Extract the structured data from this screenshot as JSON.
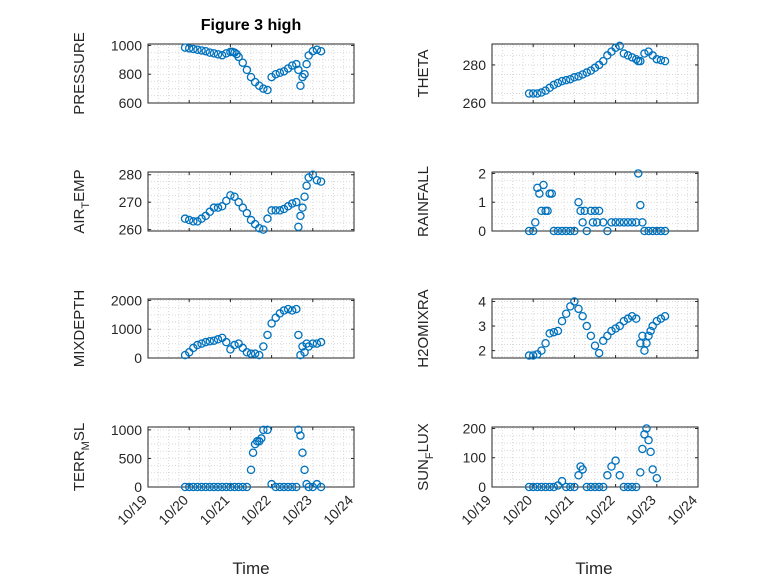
{
  "figure": {
    "title": "Figure 3 high",
    "x_axis_label": "Time",
    "x_tick_labels": [
      "10/19",
      "10/20",
      "10/21",
      "10/22",
      "10/23",
      "10/24"
    ],
    "marker_color": "#0072bd"
  },
  "chart_data": [
    {
      "type": "scatter",
      "ylabel": "PRESSURE",
      "yticks": [
        600,
        800,
        1000
      ],
      "ylim": [
        600,
        1010
      ],
      "xlim": [
        0,
        5
      ],
      "x": [
        0.9,
        1.0,
        1.1,
        1.2,
        1.3,
        1.4,
        1.5,
        1.6,
        1.7,
        1.8,
        1.9,
        2.0,
        2.05,
        2.1,
        2.15,
        2.2,
        2.3,
        2.4,
        2.5,
        2.6,
        2.7,
        2.8,
        2.9,
        3.0,
        3.1,
        3.2,
        3.3,
        3.4,
        3.5,
        3.6,
        3.65,
        3.7,
        3.75,
        3.8,
        3.85,
        3.9,
        4.0,
        4.1,
        4.2
      ],
      "y": [
        985,
        980,
        975,
        970,
        965,
        960,
        950,
        945,
        938,
        932,
        945,
        955,
        955,
        950,
        940,
        920,
        880,
        830,
        780,
        745,
        720,
        700,
        690,
        780,
        800,
        810,
        820,
        840,
        860,
        870,
        830,
        720,
        780,
        800,
        870,
        930,
        960,
        970,
        960
      ]
    },
    {
      "type": "scatter",
      "ylabel": "THETA",
      "yticks": [
        260,
        280
      ],
      "ylim": [
        260,
        291
      ],
      "xlim": [
        0,
        5
      ],
      "x": [
        0.9,
        1.0,
        1.1,
        1.2,
        1.3,
        1.4,
        1.5,
        1.6,
        1.7,
        1.8,
        1.9,
        2.0,
        2.1,
        2.2,
        2.3,
        2.4,
        2.5,
        2.6,
        2.7,
        2.8,
        2.9,
        3.0,
        3.1,
        3.2,
        3.3,
        3.4,
        3.5,
        3.55,
        3.6,
        3.7,
        3.8,
        3.9,
        4.0,
        4.1,
        4.2
      ],
      "y": [
        265,
        265,
        265,
        265.5,
        266.5,
        268,
        269.5,
        270.5,
        271.5,
        272,
        272.5,
        273.5,
        274,
        275,
        276,
        277,
        278.5,
        280,
        282,
        285,
        287,
        289,
        290,
        286,
        285,
        284,
        283,
        282,
        282,
        286,
        287,
        285,
        283,
        282.5,
        282
      ]
    },
    {
      "type": "scatter",
      "ylabel": "AIR_TEMP",
      "yticks": [
        260,
        270,
        280
      ],
      "ylim": [
        259.5,
        281
      ],
      "xlim": [
        0,
        5
      ],
      "x": [
        0.9,
        1.0,
        1.1,
        1.2,
        1.3,
        1.4,
        1.5,
        1.6,
        1.7,
        1.8,
        1.9,
        2.0,
        2.1,
        2.2,
        2.3,
        2.4,
        2.5,
        2.6,
        2.7,
        2.8,
        2.9,
        3.0,
        3.1,
        3.2,
        3.3,
        3.4,
        3.5,
        3.6,
        3.65,
        3.7,
        3.75,
        3.8,
        3.85,
        3.9,
        4.0,
        4.1,
        4.2
      ],
      "y": [
        264,
        263.5,
        263,
        263,
        264,
        265,
        266.5,
        268,
        268,
        268.5,
        270.5,
        272.5,
        272,
        270,
        268,
        266,
        263.5,
        262,
        260.5,
        260,
        264,
        267,
        267,
        267,
        267.5,
        268.5,
        269.5,
        270,
        261,
        265,
        268,
        272,
        276,
        279,
        280,
        278,
        277.5
      ]
    },
    {
      "type": "scatter",
      "ylabel": "RAINFALL",
      "yticks": [
        0,
        1,
        2
      ],
      "ylim": [
        0,
        2.05
      ],
      "xlim": [
        0,
        5
      ],
      "x": [
        0.9,
        1.0,
        1.05,
        1.1,
        1.15,
        1.2,
        1.25,
        1.3,
        1.35,
        1.4,
        1.45,
        1.5,
        1.6,
        1.7,
        1.8,
        1.9,
        2.0,
        2.1,
        2.15,
        2.2,
        2.25,
        2.3,
        2.4,
        2.45,
        2.5,
        2.55,
        2.6,
        2.7,
        2.8,
        2.9,
        3.0,
        3.1,
        3.2,
        3.3,
        3.4,
        3.5,
        3.55,
        3.6,
        3.65,
        3.7,
        3.8,
        3.9,
        4.0,
        4.1,
        4.2
      ],
      "y": [
        0,
        0,
        0.3,
        1.5,
        1.3,
        0.7,
        1.6,
        0.7,
        0.7,
        1.3,
        1.3,
        0,
        0,
        0,
        0,
        0,
        0,
        1.0,
        0.7,
        0.3,
        0.7,
        0,
        0.7,
        0.3,
        0.7,
        0.3,
        0.7,
        0.3,
        0,
        0.3,
        0.3,
        0.3,
        0.3,
        0.3,
        0.3,
        0.3,
        2.0,
        0.9,
        0.3,
        0,
        0,
        0,
        0,
        0,
        0
      ]
    },
    {
      "type": "scatter",
      "ylabel": "MIXDEPTH",
      "yticks": [
        0,
        1000,
        2000
      ],
      "ylim": [
        0,
        2050
      ],
      "xlim": [
        0,
        5
      ],
      "x": [
        0.9,
        1.0,
        1.1,
        1.2,
        1.3,
        1.4,
        1.5,
        1.6,
        1.7,
        1.8,
        1.9,
        2.0,
        2.1,
        2.2,
        2.3,
        2.4,
        2.5,
        2.6,
        2.7,
        2.8,
        2.9,
        3.0,
        3.1,
        3.2,
        3.3,
        3.4,
        3.5,
        3.6,
        3.65,
        3.7,
        3.75,
        3.8,
        3.85,
        3.9,
        4.0,
        4.1,
        4.2
      ],
      "y": [
        100,
        200,
        350,
        450,
        500,
        550,
        580,
        600,
        650,
        700,
        550,
        300,
        450,
        500,
        350,
        200,
        150,
        150,
        100,
        400,
        800,
        1200,
        1400,
        1550,
        1650,
        1700,
        1650,
        1700,
        800,
        100,
        400,
        200,
        500,
        400,
        500,
        500,
        550
      ]
    },
    {
      "type": "scatter",
      "ylabel": "H2OMIXRA",
      "yticks": [
        2,
        3,
        4
      ],
      "ylim": [
        1.7,
        4.1
      ],
      "xlim": [
        0,
        5
      ],
      "x": [
        0.9,
        1.0,
        1.1,
        1.2,
        1.3,
        1.4,
        1.5,
        1.6,
        1.7,
        1.8,
        1.9,
        2.0,
        2.1,
        2.2,
        2.3,
        2.4,
        2.5,
        2.6,
        2.7,
        2.8,
        2.9,
        3.0,
        3.1,
        3.2,
        3.3,
        3.4,
        3.5,
        3.6,
        3.65,
        3.7,
        3.75,
        3.8,
        3.85,
        3.9,
        4.0,
        4.1,
        4.2
      ],
      "y": [
        1.8,
        1.8,
        1.85,
        2.0,
        2.3,
        2.7,
        2.75,
        2.8,
        3.2,
        3.5,
        3.8,
        4.0,
        3.7,
        3.4,
        3.0,
        2.6,
        2.2,
        1.9,
        2.4,
        2.6,
        2.8,
        2.9,
        3.0,
        3.2,
        3.3,
        3.4,
        3.3,
        2.3,
        2.6,
        2.0,
        2.3,
        2.6,
        2.8,
        3.0,
        3.2,
        3.3,
        3.4
      ]
    },
    {
      "type": "scatter",
      "ylabel": "TERR_MSL",
      "yticks": [
        0,
        500,
        1000
      ],
      "ylim": [
        0,
        1050
      ],
      "xlim": [
        0,
        5
      ],
      "x": [
        0.9,
        1.0,
        1.1,
        1.2,
        1.3,
        1.4,
        1.5,
        1.6,
        1.7,
        1.8,
        1.9,
        2.0,
        2.1,
        2.2,
        2.3,
        2.4,
        2.5,
        2.55,
        2.6,
        2.65,
        2.7,
        2.75,
        2.8,
        2.9,
        3.0,
        3.1,
        3.2,
        3.3,
        3.4,
        3.5,
        3.6,
        3.65,
        3.7,
        3.75,
        3.8,
        3.85,
        3.9,
        4.0,
        4.1,
        4.2
      ],
      "y": [
        0,
        0,
        0,
        0,
        0,
        0,
        0,
        0,
        0,
        0,
        0,
        0,
        0,
        0,
        0,
        0,
        300,
        600,
        750,
        800,
        800,
        850,
        1000,
        1000,
        50,
        0,
        0,
        0,
        0,
        0,
        0,
        1000,
        900,
        600,
        300,
        50,
        0,
        0,
        50,
        0
      ]
    },
    {
      "type": "scatter",
      "ylabel": "SUN_FLUX",
      "yticks": [
        0,
        100,
        200
      ],
      "ylim": [
        0,
        205
      ],
      "xlim": [
        0,
        5
      ],
      "x": [
        0.9,
        1.0,
        1.1,
        1.2,
        1.3,
        1.4,
        1.5,
        1.6,
        1.7,
        1.8,
        1.9,
        2.0,
        2.1,
        2.15,
        2.2,
        2.3,
        2.4,
        2.5,
        2.6,
        2.7,
        2.8,
        2.9,
        3.0,
        3.1,
        3.2,
        3.3,
        3.4,
        3.5,
        3.6,
        3.65,
        3.7,
        3.75,
        3.8,
        3.85,
        3.9,
        4.0
      ],
      "y": [
        0,
        0,
        0,
        0,
        0,
        0,
        0,
        5,
        20,
        0,
        0,
        0,
        40,
        70,
        60,
        0,
        0,
        0,
        0,
        0,
        40,
        70,
        90,
        40,
        0,
        0,
        0,
        0,
        50,
        130,
        180,
        200,
        160,
        120,
        60,
        30
      ]
    }
  ]
}
